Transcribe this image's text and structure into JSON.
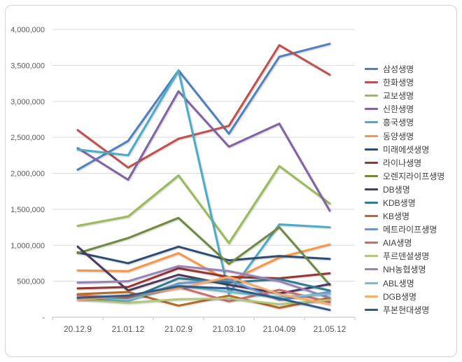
{
  "chart_data": {
    "type": "line",
    "title": "",
    "xlabel": "",
    "ylabel": "",
    "grid": "horizontal",
    "legend_position": "right",
    "ylim": [
      0,
      4000000
    ],
    "x": [
      "20.12.9",
      "21.01.12",
      "21.02.9",
      "21.03.10",
      "21.04.09",
      "21.05.12"
    ],
    "y_ticks": [
      {
        "value": 0,
        "label": "-"
      },
      {
        "value": 500000,
        "label": "500,000"
      },
      {
        "value": 1000000,
        "label": "1,000,000"
      },
      {
        "value": 1500000,
        "label": "1,500,000"
      },
      {
        "value": 2000000,
        "label": "2,000,000"
      },
      {
        "value": 2500000,
        "label": "2,500,000"
      },
      {
        "value": 3000000,
        "label": "3,000,000"
      },
      {
        "value": 3500000,
        "label": "3,500,000"
      },
      {
        "value": 4000000,
        "label": "4,000,000"
      }
    ],
    "series": [
      {
        "name": "삼성생명",
        "color": "#4F81BD",
        "values": [
          2050000,
          2450000,
          3430000,
          2550000,
          3620000,
          3800000
        ]
      },
      {
        "name": "한화생명",
        "color": "#C0504D",
        "values": [
          2600000,
          2080000,
          2480000,
          2660000,
          3780000,
          3370000
        ]
      },
      {
        "name": "교보생명",
        "color": "#9BBB59",
        "values": [
          1270000,
          1400000,
          1970000,
          1030000,
          2100000,
          1580000
        ]
      },
      {
        "name": "신한생명",
        "color": "#8064A2",
        "values": [
          2350000,
          1910000,
          3140000,
          2370000,
          2690000,
          1480000
        ]
      },
      {
        "name": "흥국생명",
        "color": "#4BACC6",
        "values": [
          2330000,
          2250000,
          3430000,
          330000,
          1290000,
          1250000
        ]
      },
      {
        "name": "동양생명",
        "color": "#F79646",
        "values": [
          650000,
          640000,
          890000,
          500000,
          830000,
          1010000
        ]
      },
      {
        "name": "미래에셋생명",
        "color": "#2D4E71",
        "values": [
          900000,
          750000,
          980000,
          790000,
          850000,
          810000
        ]
      },
      {
        "name": "라이나생명",
        "color": "#943634",
        "values": [
          400000,
          420000,
          680000,
          560000,
          540000,
          610000
        ]
      },
      {
        "name": "오렌지라이프생명",
        "color": "#71893F",
        "values": [
          890000,
          1100000,
          1380000,
          740000,
          1250000,
          450000
        ]
      },
      {
        "name": "DB생명",
        "color": "#4A3A60",
        "values": [
          980000,
          370000,
          590000,
          450000,
          330000,
          460000
        ]
      },
      {
        "name": "KDB생명",
        "color": "#2E7C8F",
        "values": [
          300000,
          250000,
          540000,
          480000,
          530000,
          370000
        ]
      },
      {
        "name": "KB생명",
        "color": "#B66A27",
        "values": [
          320000,
          350000,
          160000,
          300000,
          130000,
          270000
        ]
      },
      {
        "name": "메트라이프생명",
        "color": "#7295C7",
        "values": [
          250000,
          230000,
          470000,
          520000,
          240000,
          350000
        ]
      },
      {
        "name": "AIA생명",
        "color": "#CC6D6A",
        "values": [
          300000,
          270000,
          420000,
          220000,
          380000,
          210000
        ]
      },
      {
        "name": "푸르덴셜생명",
        "color": "#AFC97A",
        "values": [
          250000,
          200000,
          250000,
          260000,
          180000,
          240000
        ]
      },
      {
        "name": "NH농협생명",
        "color": "#9883B8",
        "values": [
          480000,
          500000,
          710000,
          640000,
          500000,
          270000
        ]
      },
      {
        "name": "ABL생명",
        "color": "#74BFD3",
        "values": [
          280000,
          240000,
          440000,
          350000,
          280000,
          320000
        ]
      },
      {
        "name": "DGB생명",
        "color": "#F9AB6B",
        "values": [
          240000,
          300000,
          400000,
          560000,
          320000,
          180000
        ]
      },
      {
        "name": "푸본현대생명",
        "color": "#2F5B8A",
        "values": [
          270000,
          300000,
          430000,
          400000,
          260000,
          100000
        ]
      }
    ]
  }
}
